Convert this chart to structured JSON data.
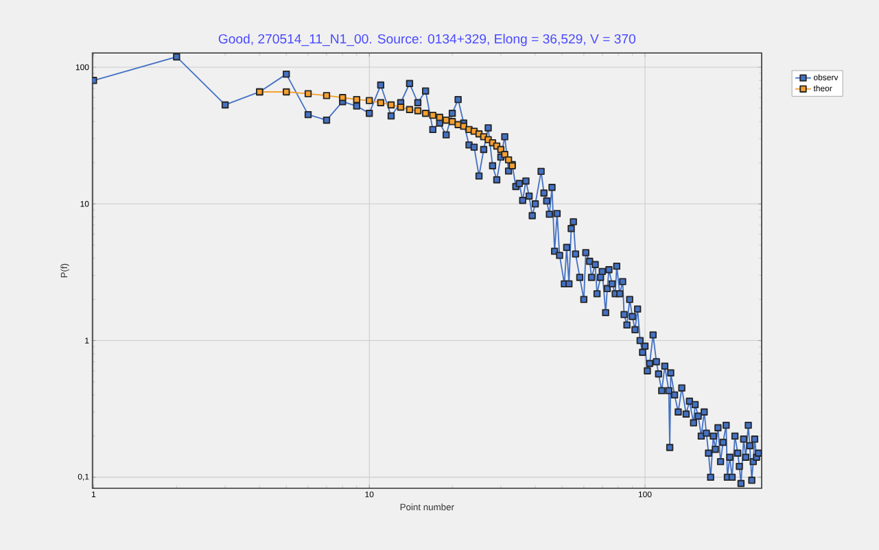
{
  "chart_data": {
    "type": "line",
    "title": "Good, 270514_11_N1_00. Source: 0134+329, Elong = 36,529, V = 370",
    "xlabel": "Point number",
    "ylabel": "P(f)",
    "log": "xy",
    "grid": true,
    "legend": "right",
    "marker": "square",
    "line_style": "solid",
    "xlim": [
      0.99,
      265
    ],
    "ylim": [
      0.083,
      127
    ],
    "xticks": [
      1,
      10,
      100
    ],
    "yticks": [
      {
        "value": 0.1,
        "label": "0,1"
      },
      1,
      10,
      100
    ],
    "series": [
      {
        "name": "observ",
        "color": "#4472c4",
        "x": [
          1,
          2,
          3,
          4,
          5,
          6,
          7,
          8,
          9,
          10,
          11,
          12,
          13,
          14,
          15,
          16,
          17,
          18,
          19,
          20,
          21,
          22,
          23,
          24,
          25,
          26,
          27,
          28,
          29,
          30,
          31,
          32,
          33,
          34,
          35,
          36,
          37,
          38,
          39,
          40,
          42,
          43,
          44,
          45,
          46,
          47,
          48,
          49,
          51,
          52,
          53,
          54,
          55,
          56,
          58,
          60,
          61,
          63,
          64,
          66,
          67,
          69,
          70,
          72,
          73,
          74,
          76,
          78,
          79,
          81,
          83,
          84,
          86,
          88,
          90,
          92,
          94,
          96,
          98,
          100,
          102,
          104,
          107,
          110,
          112,
          115,
          118,
          122,
          123,
          124,
          128,
          132,
          136,
          141,
          145,
          150,
          152,
          156,
          160,
          164,
          167,
          170,
          173,
          177,
          180,
          184,
          188,
          192,
          197,
          199,
          203,
          207,
          212,
          217,
          220,
          223,
          228,
          232,
          237,
          240,
          244,
          247,
          250,
          254,
          258
        ],
        "values": [
          80,
          119,
          53,
          66,
          89,
          45,
          41,
          56,
          52,
          46,
          74,
          44,
          55,
          76,
          55,
          67,
          35,
          39,
          32,
          46,
          58,
          39,
          27,
          26,
          16,
          25,
          36,
          19,
          15,
          22,
          31,
          17.4,
          19.4,
          13.4,
          14.1,
          10.6,
          14.7,
          11.4,
          8.2,
          10,
          17.3,
          12,
          10.5,
          8.4,
          13.2,
          4.5,
          8.5,
          4.2,
          2.6,
          4.8,
          2.6,
          6.6,
          7.4,
          4.3,
          2.9,
          2.0,
          4.4,
          3.8,
          2.9,
          3.6,
          2.2,
          2.9,
          3.2,
          1.6,
          2.4,
          3.3,
          2.6,
          2.2,
          3.5,
          2.2,
          2.7,
          1.55,
          1.3,
          2.0,
          1.5,
          1.2,
          1.7,
          1.0,
          0.82,
          0.91,
          0.6,
          0.68,
          1.1,
          0.7,
          0.57,
          0.43,
          0.65,
          0.43,
          0.165,
          0.58,
          0.4,
          0.3,
          0.45,
          0.29,
          0.36,
          0.25,
          0.34,
          0.28,
          0.2,
          0.3,
          0.21,
          0.15,
          0.1,
          0.2,
          0.16,
          0.23,
          0.13,
          0.18,
          0.24,
          0.1,
          0.14,
          0.1,
          0.2,
          0.15,
          0.12,
          0.09,
          0.19,
          0.14,
          0.24,
          0.17,
          0.095,
          0.13,
          0.19,
          0.14,
          0.15
        ]
      },
      {
        "name": "theor",
        "color": "#f5a030",
        "x": [
          4,
          5,
          6,
          7,
          8,
          9,
          10,
          11,
          12,
          13,
          14,
          15,
          16,
          17,
          18,
          19,
          20,
          21,
          22,
          23,
          24,
          25,
          26,
          27,
          28,
          29,
          30,
          31,
          32,
          33
        ],
        "values": [
          66,
          66,
          64,
          62,
          60,
          58,
          57,
          55,
          53,
          51,
          49,
          48,
          46,
          44.5,
          43,
          41,
          40,
          38,
          37,
          35,
          34,
          32.5,
          31,
          29.5,
          28,
          26.5,
          25,
          23,
          21,
          19
        ]
      }
    ]
  }
}
